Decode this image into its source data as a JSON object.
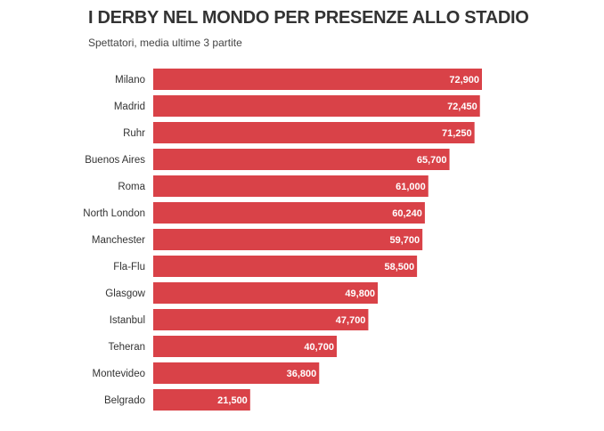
{
  "chart_data": {
    "type": "bar",
    "orientation": "horizontal",
    "title": "I DERBY NEL MONDO PER PRESENZE ALLO STADIO",
    "subtitle": "Spettatori, media ultime 3 partite",
    "xlabel": "",
    "ylabel": "",
    "xlim": [
      0,
      80000
    ],
    "grid": false,
    "legend": "none",
    "bar_color": "#d94248",
    "label_color": "#ffffff",
    "category_color": "#333333",
    "categories": [
      "Milano",
      "Madrid",
      "Ruhr",
      "Buenos Aires",
      "Roma",
      "North London",
      "Manchester",
      "Fla-Flu",
      "Glasgow",
      "Istanbul",
      "Teheran",
      "Montevideo",
      "Belgrado"
    ],
    "values": [
      72900,
      72450,
      71250,
      65700,
      61000,
      60240,
      59700,
      58500,
      49800,
      47700,
      40700,
      36800,
      21500
    ],
    "value_labels": [
      "72,900",
      "72,450",
      "71,250",
      "65,700",
      "61,000",
      "60,240",
      "59,700",
      "58,500",
      "49,800",
      "47,700",
      "40,700",
      "36,800",
      "21,500"
    ]
  }
}
